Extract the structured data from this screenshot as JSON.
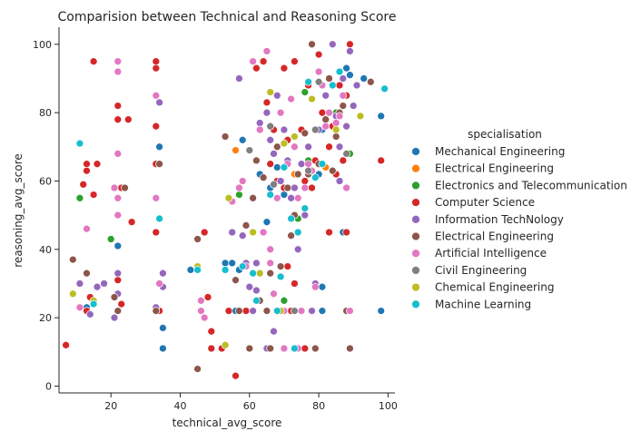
{
  "chart_data": {
    "type": "scatter",
    "title": "Comparision between Technical and Reasoning Score",
    "xlabel": "technical_avg_score",
    "ylabel": "reasoning_avg_score",
    "xlim": [
      5,
      102
    ],
    "ylim": [
      -2,
      105
    ],
    "xticks": [
      20,
      40,
      60,
      80,
      100
    ],
    "yticks": [
      0,
      20,
      40,
      60,
      80,
      100
    ],
    "grid": false,
    "legend_position": "right",
    "legend_title": "specialisation",
    "series": [
      {
        "name": "Mechanical Engineering",
        "color": "#1f77b4",
        "points": [
          [
            13,
            23
          ],
          [
            22,
            41
          ],
          [
            34,
            70
          ],
          [
            35,
            17
          ],
          [
            35,
            11
          ],
          [
            43,
            34
          ],
          [
            45,
            34
          ],
          [
            53,
            36
          ],
          [
            55,
            36
          ],
          [
            57,
            34
          ],
          [
            56,
            22
          ],
          [
            61,
            22
          ],
          [
            63,
            62
          ],
          [
            66,
            58
          ],
          [
            68,
            64
          ],
          [
            74,
            11
          ],
          [
            75,
            22
          ],
          [
            77,
            88
          ],
          [
            80,
            62
          ],
          [
            81,
            29
          ],
          [
            81,
            22
          ],
          [
            81,
            75
          ],
          [
            87,
            45
          ],
          [
            88,
            93
          ],
          [
            88,
            22
          ],
          [
            89,
            91
          ],
          [
            93,
            90
          ],
          [
            98,
            79
          ],
          [
            98,
            22
          ],
          [
            58,
            72
          ],
          [
            65,
            48
          ],
          [
            70,
            56
          ]
        ]
      },
      {
        "name": "Electrical Engineering",
        "color": "#ff7f0e",
        "points": [
          [
            56,
            69
          ],
          [
            73,
            62
          ],
          [
            65,
            22
          ],
          [
            82,
            64
          ]
        ]
      },
      {
        "name": "Electronics and Telecommunication",
        "color": "#2ca02c",
        "points": [
          [
            11,
            55
          ],
          [
            20,
            43
          ],
          [
            57,
            56
          ],
          [
            61,
            33
          ],
          [
            70,
            25
          ],
          [
            74,
            49
          ],
          [
            76,
            86
          ],
          [
            85,
            80
          ],
          [
            89,
            68
          ],
          [
            77,
            66
          ]
        ]
      },
      {
        "name": "Computer Science",
        "color": "#d62728",
        "points": [
          [
            7,
            12
          ],
          [
            13,
            63
          ],
          [
            13,
            65
          ],
          [
            15,
            95
          ],
          [
            16,
            65
          ],
          [
            15,
            56
          ],
          [
            12,
            59
          ],
          [
            22,
            82
          ],
          [
            22,
            78
          ],
          [
            23,
            58
          ],
          [
            25,
            78
          ],
          [
            26,
            48
          ],
          [
            33,
            95
          ],
          [
            33,
            93
          ],
          [
            33,
            76
          ],
          [
            33,
            65
          ],
          [
            33,
            45
          ],
          [
            34,
            22
          ],
          [
            14,
            26
          ],
          [
            13,
            22
          ],
          [
            23,
            24
          ],
          [
            22,
            31
          ],
          [
            47,
            45
          ],
          [
            48,
            26
          ],
          [
            49,
            16
          ],
          [
            49,
            11
          ],
          [
            52,
            11
          ],
          [
            54,
            22
          ],
          [
            56,
            3
          ],
          [
            59,
            22
          ],
          [
            62,
            93
          ],
          [
            64,
            95
          ],
          [
            65,
            83
          ],
          [
            66,
            65
          ],
          [
            67,
            75
          ],
          [
            69,
            80
          ],
          [
            70,
            93
          ],
          [
            71,
            72
          ],
          [
            72,
            84
          ],
          [
            73,
            95
          ],
          [
            75,
            75
          ],
          [
            76,
            60
          ],
          [
            77,
            88
          ],
          [
            78,
            58
          ],
          [
            79,
            66
          ],
          [
            80,
            97
          ],
          [
            81,
            80
          ],
          [
            83,
            70
          ],
          [
            84,
            76
          ],
          [
            85,
            62
          ],
          [
            86,
            88
          ],
          [
            87,
            66
          ],
          [
            88,
            85
          ],
          [
            89,
            100
          ],
          [
            71,
            35
          ],
          [
            72,
            22
          ],
          [
            73,
            30
          ],
          [
            66,
            11
          ],
          [
            68,
            60
          ],
          [
            70,
            58
          ],
          [
            98,
            66
          ],
          [
            76,
            11
          ],
          [
            79,
            11
          ],
          [
            83,
            45
          ],
          [
            88,
            45
          ],
          [
            89,
            22
          ]
        ]
      },
      {
        "name": "Information TechNology",
        "color": "#9467bd",
        "points": [
          [
            9,
            37
          ],
          [
            11,
            30
          ],
          [
            14,
            21
          ],
          [
            16,
            29
          ],
          [
            18,
            30
          ],
          [
            21,
            20
          ],
          [
            22,
            27
          ],
          [
            22,
            33
          ],
          [
            33,
            23
          ],
          [
            34,
            65
          ],
          [
            34,
            83
          ],
          [
            35,
            33
          ],
          [
            35,
            29
          ],
          [
            55,
            45
          ],
          [
            57,
            90
          ],
          [
            58,
            44
          ],
          [
            59,
            36
          ],
          [
            60,
            29
          ],
          [
            61,
            22
          ],
          [
            62,
            28
          ],
          [
            63,
            77
          ],
          [
            65,
            80
          ],
          [
            66,
            72
          ],
          [
            67,
            68
          ],
          [
            68,
            85
          ],
          [
            69,
            60
          ],
          [
            70,
            75
          ],
          [
            71,
            66
          ],
          [
            72,
            55
          ],
          [
            73,
            58
          ],
          [
            74,
            40
          ],
          [
            75,
            65
          ],
          [
            76,
            50
          ],
          [
            77,
            70
          ],
          [
            78,
            22
          ],
          [
            79,
            30
          ],
          [
            80,
            75
          ],
          [
            82,
            85
          ],
          [
            84,
            100
          ],
          [
            85,
            79
          ],
          [
            86,
            70
          ],
          [
            87,
            90
          ],
          [
            88,
            76
          ],
          [
            89,
            98
          ],
          [
            90,
            82
          ],
          [
            91,
            88
          ],
          [
            65,
            11
          ],
          [
            67,
            16
          ],
          [
            62,
            36
          ],
          [
            74,
            62
          ],
          [
            86,
            60
          ]
        ]
      },
      {
        "name": "Electrical Engineering",
        "color": "#8c564b",
        "points": [
          [
            9,
            37
          ],
          [
            13,
            33
          ],
          [
            21,
            26
          ],
          [
            22,
            22
          ],
          [
            24,
            58
          ],
          [
            33,
            22
          ],
          [
            34,
            65
          ],
          [
            45,
            43
          ],
          [
            45,
            5
          ],
          [
            53,
            73
          ],
          [
            56,
            31
          ],
          [
            57,
            22
          ],
          [
            59,
            47
          ],
          [
            60,
            11
          ],
          [
            62,
            66
          ],
          [
            63,
            25
          ],
          [
            65,
            22
          ],
          [
            66,
            11
          ],
          [
            68,
            70
          ],
          [
            69,
            35
          ],
          [
            70,
            22
          ],
          [
            71,
            58
          ],
          [
            72,
            44
          ],
          [
            73,
            50
          ],
          [
            74,
            62
          ],
          [
            76,
            74
          ],
          [
            77,
            62
          ],
          [
            78,
            100
          ],
          [
            79,
            11
          ],
          [
            80,
            65
          ],
          [
            81,
            88
          ],
          [
            82,
            78
          ],
          [
            83,
            90
          ],
          [
            84,
            63
          ],
          [
            85,
            73
          ],
          [
            86,
            80
          ],
          [
            87,
            82
          ],
          [
            88,
            22
          ],
          [
            89,
            11
          ],
          [
            95,
            89
          ],
          [
            92,
            79
          ],
          [
            61,
            55
          ],
          [
            64,
            61
          ],
          [
            66,
            33
          ]
        ]
      },
      {
        "name": "Artificial Intelligence",
        "color": "#e377c2",
        "points": [
          [
            11,
            23
          ],
          [
            13,
            46
          ],
          [
            21,
            58
          ],
          [
            22,
            95
          ],
          [
            22,
            92
          ],
          [
            22,
            68
          ],
          [
            22,
            55
          ],
          [
            22,
            50
          ],
          [
            33,
            85
          ],
          [
            33,
            55
          ],
          [
            34,
            30
          ],
          [
            46,
            25
          ],
          [
            46,
            22
          ],
          [
            47,
            20
          ],
          [
            55,
            54
          ],
          [
            57,
            58
          ],
          [
            58,
            60
          ],
          [
            59,
            35
          ],
          [
            61,
            95
          ],
          [
            63,
            75
          ],
          [
            64,
            45
          ],
          [
            65,
            98
          ],
          [
            66,
            40
          ],
          [
            67,
            27
          ],
          [
            68,
            55
          ],
          [
            69,
            80
          ],
          [
            70,
            22
          ],
          [
            71,
            65
          ],
          [
            72,
            84
          ],
          [
            73,
            70
          ],
          [
            74,
            11
          ],
          [
            75,
            22
          ],
          [
            76,
            58
          ],
          [
            77,
            65
          ],
          [
            78,
            63
          ],
          [
            79,
            29
          ],
          [
            80,
            92
          ],
          [
            81,
            88
          ],
          [
            82,
            76
          ],
          [
            83,
            80
          ],
          [
            85,
            77
          ],
          [
            86,
            79
          ],
          [
            87,
            85
          ],
          [
            88,
            58
          ],
          [
            89,
            22
          ],
          [
            70,
            11
          ],
          [
            74,
            55
          ],
          [
            66,
            36
          ]
        ]
      },
      {
        "name": "Civil Engineering",
        "color": "#7f7f7f",
        "points": [
          [
            80,
            89
          ],
          [
            79,
            75
          ],
          [
            66,
            76
          ],
          [
            67,
            59
          ],
          [
            88,
            68
          ],
          [
            60,
            69
          ],
          [
            77,
            63
          ],
          [
            73,
            22
          ]
        ]
      },
      {
        "name": "Chemical Engineering",
        "color": "#bcbd22",
        "points": [
          [
            9,
            27
          ],
          [
            15,
            25
          ],
          [
            45,
            35
          ],
          [
            53,
            12
          ],
          [
            54,
            55
          ],
          [
            61,
            45
          ],
          [
            66,
            86
          ],
          [
            69,
            22
          ],
          [
            70,
            71
          ],
          [
            78,
            84
          ],
          [
            85,
            75
          ],
          [
            92,
            79
          ],
          [
            73,
            73
          ],
          [
            63,
            33
          ]
        ]
      },
      {
        "name": "Machine Learning",
        "color": "#17becf",
        "points": [
          [
            11,
            71
          ],
          [
            15,
            24
          ],
          [
            34,
            49
          ],
          [
            45,
            34
          ],
          [
            53,
            34
          ],
          [
            58,
            35
          ],
          [
            61,
            33
          ],
          [
            62,
            25
          ],
          [
            66,
            56
          ],
          [
            68,
            22
          ],
          [
            69,
            32
          ],
          [
            70,
            64
          ],
          [
            72,
            49
          ],
          [
            74,
            45
          ],
          [
            76,
            52
          ],
          [
            77,
            89
          ],
          [
            79,
            61
          ],
          [
            81,
            65
          ],
          [
            84,
            88
          ],
          [
            86,
            92
          ],
          [
            99,
            87
          ],
          [
            73,
            11
          ]
        ]
      }
    ]
  }
}
